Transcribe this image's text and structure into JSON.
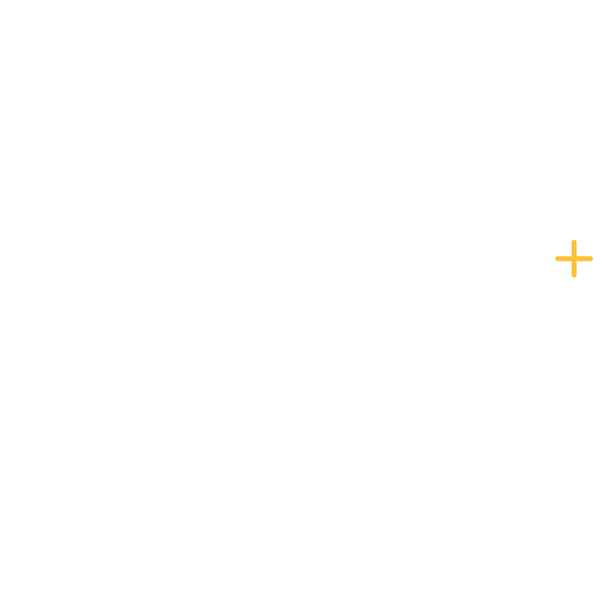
{
  "colors": {
    "background": "#ffffff",
    "accent": "#FBC235"
  },
  "add_control": {
    "icon": "plus-icon"
  }
}
